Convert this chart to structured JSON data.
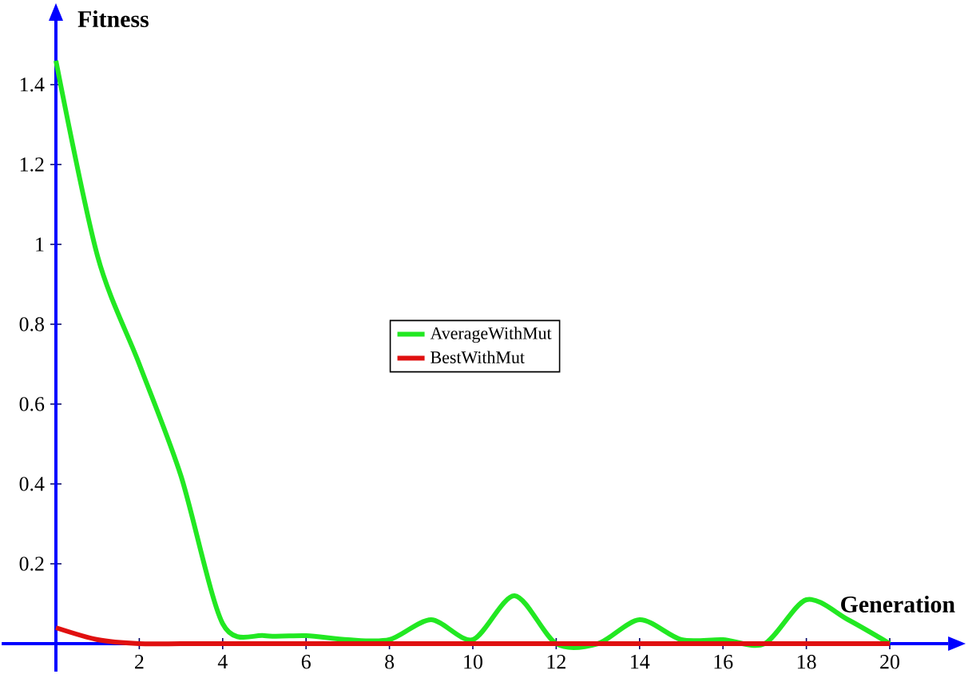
{
  "chart_data": {
    "type": "line",
    "xlabel": "Generation",
    "ylabel": "Fitness",
    "x": [
      0,
      1,
      2,
      3,
      4,
      5,
      6,
      7,
      8,
      9,
      10,
      11,
      12,
      13,
      14,
      15,
      16,
      17,
      18,
      19,
      20
    ],
    "series": [
      {
        "name": "AverageWithMut",
        "color": "#22e822",
        "values": [
          1.46,
          0.97,
          0.7,
          0.42,
          0.05,
          0.02,
          0.02,
          0.01,
          0.01,
          0.06,
          0.01,
          0.12,
          0,
          0,
          0.06,
          0.01,
          0.01,
          0,
          0.11,
          0.06,
          0
        ]
      },
      {
        "name": "BestWithMut",
        "color": "#e01010",
        "values": [
          0.04,
          0.01,
          0,
          0,
          0,
          0,
          0,
          0,
          0,
          0,
          0,
          0,
          0,
          0,
          0,
          0,
          0,
          0,
          0,
          0,
          0
        ]
      }
    ],
    "xlim": [
      -1.3,
      21.4
    ],
    "ylim": [
      -0.07,
      1.56
    ],
    "xticks": [
      2,
      4,
      6,
      8,
      10,
      12,
      14,
      16,
      18,
      20
    ],
    "yticks": [
      0.2,
      0.4,
      0.6,
      0.8,
      1,
      1.2,
      1.4
    ],
    "legend": "center",
    "line_style": "solid"
  }
}
